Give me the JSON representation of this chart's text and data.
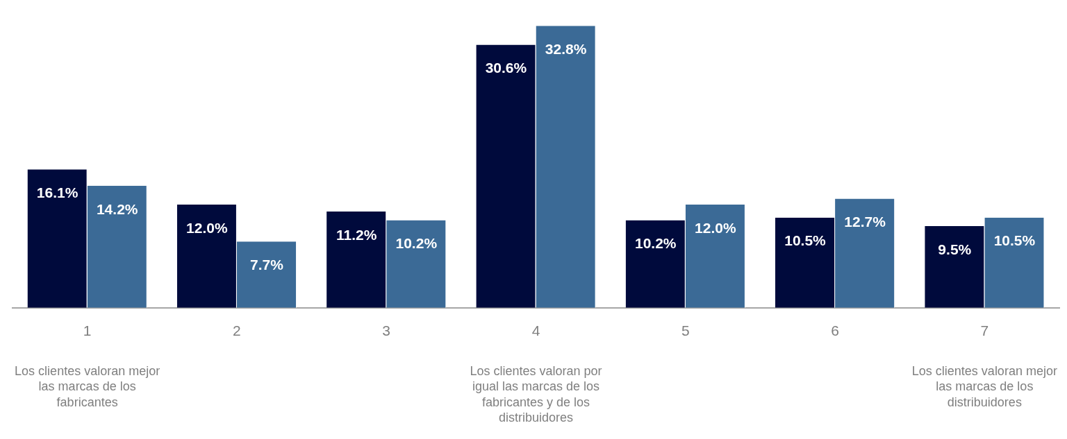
{
  "chart_data": {
    "type": "bar",
    "categories": [
      "1",
      "2",
      "3",
      "4",
      "5",
      "6",
      "7"
    ],
    "series": [
      {
        "color": "#000a3c",
        "values": [
          16.1,
          12.0,
          11.2,
          30.6,
          10.2,
          10.5,
          9.5
        ],
        "value_labels": [
          "16.1%",
          "12.0%",
          "11.2%",
          "30.6%",
          "10.2%",
          "10.5%",
          "9.5%"
        ]
      },
      {
        "color": "#3b6a96",
        "values": [
          14.2,
          7.7,
          10.2,
          32.8,
          12.0,
          12.7,
          10.5
        ],
        "value_labels": [
          "14.2%",
          "7.7%",
          "10.2%",
          "32.8%",
          "12.0%",
          "12.7%",
          "10.5%"
        ]
      }
    ],
    "annotations": [
      "Los clientes valoran mejor las marcas de los fabricantes",
      "Los clientes valoran por igual las marcas de los fabricantes y de los distribuidores",
      "Los clientes valoran mejor las marcas de los distribuidores"
    ],
    "grid": false,
    "legend": false
  }
}
